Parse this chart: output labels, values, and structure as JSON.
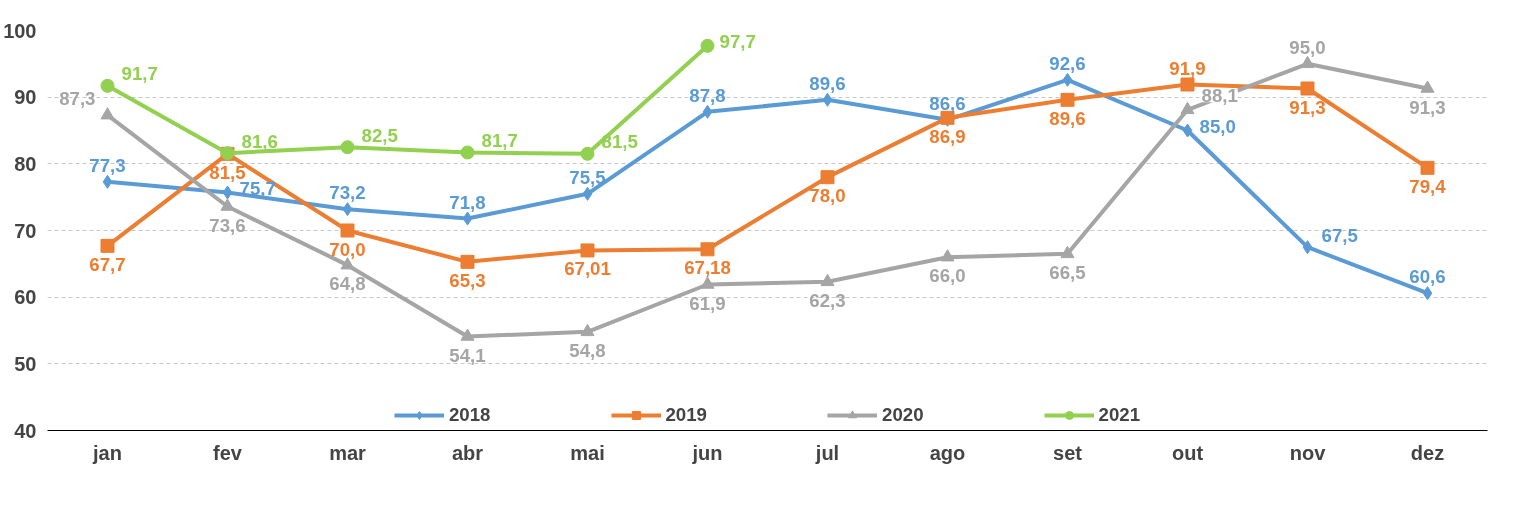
{
  "chart_data": {
    "type": "line",
    "categories": [
      "jan",
      "fev",
      "mar",
      "abr",
      "mai",
      "jun",
      "jul",
      "ago",
      "set",
      "out",
      "nov",
      "dez"
    ],
    "ylim": [
      40,
      100
    ],
    "yticks": [
      40,
      50,
      60,
      70,
      80,
      90,
      100
    ],
    "grid": "y",
    "legend": "bottom",
    "line_style": "solid",
    "series": [
      {
        "name": "2018",
        "color": "#5b9bd5",
        "marker": "diamond",
        "values": [
          77.3,
          75.7,
          73.2,
          71.8,
          75.5,
          87.8,
          89.6,
          86.6,
          92.6,
          85.0,
          67.5,
          60.6
        ],
        "value_labels": [
          "77,3",
          "75,7",
          "73,2",
          "71,8",
          "75,5",
          "87,8",
          "89,6",
          "86,6",
          "92,6",
          "85,0",
          "67,5",
          "60,6"
        ]
      },
      {
        "name": "2019",
        "color": "#ed7d31",
        "marker": "square",
        "values": [
          67.7,
          81.5,
          70.0,
          65.3,
          67.01,
          67.18,
          78.0,
          86.9,
          89.6,
          91.9,
          91.3,
          79.4
        ],
        "value_labels": [
          "67,7",
          "81,5",
          "70,0",
          "65,3",
          "67,01",
          "67,18",
          "78,0",
          "86,9",
          "89,6",
          "91,9",
          "91,3",
          "79,4"
        ]
      },
      {
        "name": "2020",
        "color": "#a5a5a5",
        "marker": "triangle",
        "values": [
          87.3,
          73.6,
          64.8,
          54.1,
          54.8,
          61.9,
          62.3,
          66.0,
          66.5,
          88.1,
          95.0,
          91.3
        ],
        "value_labels": [
          "87,3",
          "73,6",
          "64,8",
          "54,1",
          "54,8",
          "61,9",
          "62,3",
          "66,0",
          "66,5",
          "88,1",
          "95,0",
          "91,3"
        ]
      },
      {
        "name": "2021",
        "color": "#92d050",
        "marker": "circle",
        "values": [
          91.7,
          81.6,
          82.5,
          81.7,
          81.5,
          97.7,
          null,
          null,
          null,
          null,
          null,
          null
        ],
        "value_labels": [
          "91,7",
          "81,6",
          "82,5",
          "81,7",
          "81,5",
          "97,7",
          null,
          null,
          null,
          null,
          null,
          null
        ]
      }
    ]
  }
}
